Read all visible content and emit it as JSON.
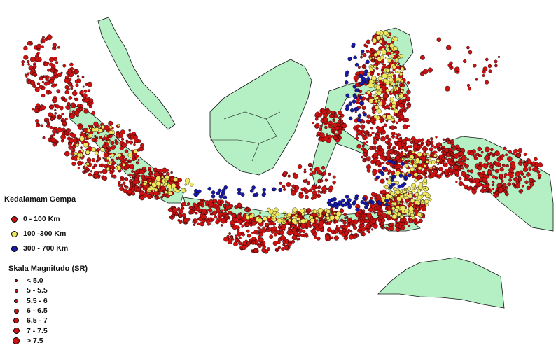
{
  "colors": {
    "land": "#b5f0c4",
    "shallow": "#cc1111",
    "intermediate": "#f0e860",
    "deep": "#1a1aa8",
    "outline": "#111111"
  },
  "legend_depth": {
    "title": "Kedalamam Gempa",
    "items": [
      {
        "label": "0 - 100 Km",
        "color": "#cc1111"
      },
      {
        "label": "100 -300 Km",
        "color": "#f0e860"
      },
      {
        "label": "300 - 700 Km",
        "color": "#1a1aa8"
      }
    ]
  },
  "legend_magnitude": {
    "title": "Skala Magnitudo (SR)",
    "items": [
      {
        "label": "< 5.0"
      },
      {
        "label": "5 - 5.5"
      },
      {
        "label": "5.5 - 6"
      },
      {
        "label": "6 - 6.5"
      },
      {
        "label": "6.5 - 7"
      },
      {
        "label": "7 - 7.5"
      },
      {
        "label": "> 7.5"
      }
    ]
  }
}
